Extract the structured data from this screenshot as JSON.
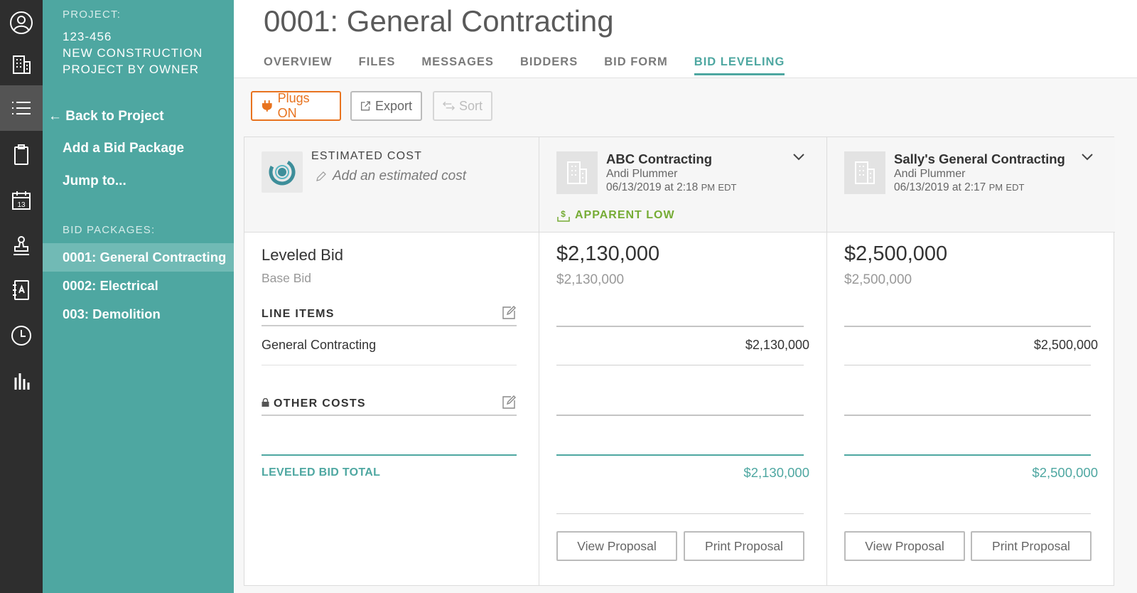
{
  "sidebar": {
    "project_label": "PROJECT:",
    "project_lines": [
      "123-456",
      "NEW CONSTRUCTION",
      "PROJECT BY OWNER"
    ],
    "back_link": "Back to Project",
    "add_package": "Add a Bid Package",
    "jump_to": "Jump to...",
    "packages_label": "BID PACKAGES:",
    "packages": [
      "0001: General Contracting",
      "0002: Electrical",
      "003: Demolition"
    ]
  },
  "rail": {
    "icons": [
      "user-icon",
      "building-icon",
      "list-icon",
      "clipboard-icon",
      "calendar-icon",
      "stamp-icon",
      "contacts-icon",
      "clock-icon",
      "chart-icon"
    ],
    "calendar_day": "13"
  },
  "header": {
    "title": "0001: General Contracting",
    "tabs": [
      "OVERVIEW",
      "FILES",
      "MESSAGES",
      "BIDDERS",
      "BID FORM",
      "BID LEVELING"
    ],
    "active_tab": "BID LEVELING"
  },
  "toolbar": {
    "plugs": "Plugs ON",
    "export": "Export",
    "sort": "Sort"
  },
  "estimate": {
    "title": "ESTIMATED COST",
    "add_text": "Add an estimated cost",
    "leveled_bid": "Leveled Bid",
    "base_bid": "Base Bid",
    "line_items_label": "LINE ITEMS",
    "line_items": [
      "General Contracting"
    ],
    "other_costs_label": "OTHER COSTS",
    "total_label": "LEVELED BID TOTAL"
  },
  "bidders": [
    {
      "name": "ABC Contracting",
      "person": "Andi Plummer",
      "date": "06/13/2019 at 2:18",
      "ampm": "PM",
      "tz": "EDT",
      "badge": "APPARENT LOW",
      "leveled_amount": "$2,130,000",
      "base_amount": "$2,130,000",
      "line_amount": "$2,130,000",
      "total_amount": "$2,130,000",
      "view_label": "View Proposal",
      "print_label": "Print Proposal"
    },
    {
      "name": "Sally's General Contracting",
      "person": "Andi Plummer",
      "date": "06/13/2019 at 2:17",
      "ampm": "PM",
      "tz": "EDT",
      "badge": "",
      "leveled_amount": "$2,500,000",
      "base_amount": "$2,500,000",
      "line_amount": "$2,500,000",
      "total_amount": "$2,500,000",
      "view_label": "View Proposal",
      "print_label": "Print Proposal"
    }
  ],
  "colors": {
    "teal": "#4ea7a1",
    "rail": "#2e2e2e",
    "plugs_orange": "#e8731f",
    "apparent_low_green": "#76ac35"
  }
}
